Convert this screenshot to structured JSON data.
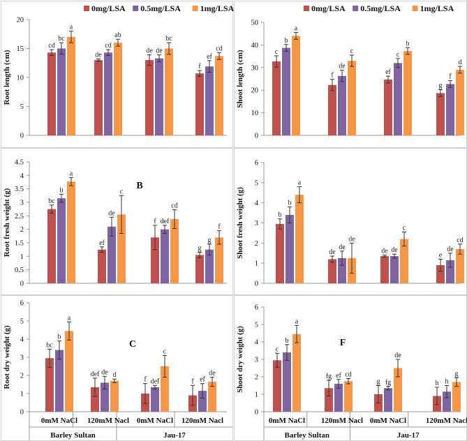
{
  "colors": {
    "s0": "#c0504d",
    "s1": "#8064a2",
    "s2": "#f79646"
  },
  "legend": [
    "0mg/LSA",
    "0.5mg/LSA",
    "1mg/LSA"
  ],
  "x_categories": [
    "0mM NaCl",
    "120mM Nacl",
    "0mM NaCl",
    "120mM Nacl"
  ],
  "x_groups": [
    "Barley Sultan",
    "Jau-17"
  ],
  "chart_data": [
    {
      "type": "bar",
      "panel": "A",
      "letter": "",
      "ylabel": "Root length (cm)",
      "ylim": [
        0,
        20
      ],
      "ticks": [
        "0",
        "5",
        "10",
        "15",
        "20"
      ],
      "categories": [
        "0mM NaCl",
        "120mM Nacl",
        "0mM NaCl",
        "120mM Nacl"
      ],
      "series": [
        {
          "name": "0mg/LSA",
          "values": [
            14.3,
            13.0,
            13.0,
            10.7
          ],
          "errors": [
            0.5,
            0.2,
            0.9,
            0.5
          ],
          "labels": [
            "cd",
            "de",
            "de",
            "f"
          ]
        },
        {
          "name": "0.5mg/LSA",
          "values": [
            15.0,
            14.3,
            13.3,
            11.9
          ],
          "errors": [
            1.0,
            0.5,
            0.6,
            1.0
          ],
          "labels": [
            "bc",
            "cd",
            "de",
            "ef"
          ]
        },
        {
          "name": "1mg/LSA",
          "values": [
            17.0,
            16.0,
            15.0,
            13.7
          ],
          "errors": [
            1.0,
            0.6,
            1.0,
            0.6
          ],
          "labels": [
            "a",
            "ab",
            "bc",
            "cd"
          ]
        }
      ]
    },
    {
      "type": "bar",
      "panel": "D",
      "letter": "",
      "ylabel": "Shoot length (cm)",
      "ylim": [
        0,
        50
      ],
      "ticks": [
        "0",
        "10",
        "20",
        "30",
        "40",
        "50"
      ],
      "categories": [
        "0mM NaCl",
        "120mM Nacl",
        "0mM NaCl",
        "120mM Nacl"
      ],
      "series": [
        {
          "name": "0mg/LSA",
          "values": [
            32.7,
            22.3,
            24.7,
            18.7
          ],
          "errors": [
            2.5,
            2.5,
            1.5,
            1.5
          ],
          "labels": [
            "c",
            "f",
            "ef",
            "g"
          ]
        },
        {
          "name": "0.5mg/LSA",
          "values": [
            38.7,
            26.3,
            32.0,
            22.7
          ],
          "errors": [
            1.5,
            2.5,
            2.0,
            1.5
          ],
          "labels": [
            "b",
            "de",
            "c",
            "f"
          ]
        },
        {
          "name": "1mg/LSA",
          "values": [
            44.0,
            33.0,
            37.3,
            29.0
          ],
          "errors": [
            1.5,
            2.5,
            1.5,
            1.5
          ],
          "labels": [
            "a",
            "c",
            "b",
            "d"
          ]
        }
      ]
    },
    {
      "type": "bar",
      "panel": "B",
      "letter": "B",
      "ylabel": "Root fresh weight (g)",
      "ylim": [
        0,
        4.5
      ],
      "ticks": [
        "0",
        "0.5",
        "1",
        "1.5",
        "2",
        "2.5",
        "3",
        "3.5",
        "4",
        "4.5"
      ],
      "categories": [
        "0mM NaCl",
        "120mM Nacl",
        "0mM NaCl",
        "120mM Nacl"
      ],
      "series": [
        {
          "name": "0mg/LSA",
          "values": [
            2.75,
            1.25,
            1.7,
            1.05
          ],
          "errors": [
            0.15,
            0.1,
            0.45,
            0.1
          ],
          "labels": [
            "bc",
            "ef",
            "f",
            "g"
          ]
        },
        {
          "name": "0.5mg/LSA",
          "values": [
            3.15,
            2.1,
            2.0,
            1.25
          ],
          "errors": [
            0.15,
            0.35,
            0.15,
            0.2
          ],
          "labels": [
            "b",
            "de",
            "def",
            "g"
          ]
        },
        {
          "name": "1mg/LSA",
          "values": [
            3.77,
            2.55,
            2.38,
            1.7
          ],
          "errors": [
            0.15,
            0.7,
            0.35,
            0.25
          ],
          "labels": [
            "a",
            "c",
            "cd",
            "f"
          ]
        }
      ]
    },
    {
      "type": "bar",
      "panel": "E",
      "letter": "",
      "ylabel": "Shoot fresh weight (g)",
      "ylim": [
        0,
        6
      ],
      "ticks": [
        "0",
        "1",
        "2",
        "3",
        "4",
        "5",
        "6"
      ],
      "categories": [
        "0mM NaCl",
        "120mM Nacl",
        "0mM NaCl",
        "120mM Nacl"
      ],
      "series": [
        {
          "name": "0mg/LSA",
          "values": [
            2.95,
            1.2,
            1.35,
            0.9
          ],
          "errors": [
            0.25,
            0.15,
            0.05,
            0.3
          ],
          "labels": [
            "b",
            "de",
            "de",
            "e"
          ]
        },
        {
          "name": "0.5mg/LSA",
          "values": [
            3.4,
            1.25,
            1.35,
            1.15
          ],
          "errors": [
            0.4,
            0.35,
            0.1,
            0.35
          ],
          "labels": [
            "b",
            "de",
            "de",
            "de"
          ]
        },
        {
          "name": "1mg/LSA",
          "values": [
            4.4,
            1.25,
            2.2,
            1.7
          ],
          "errors": [
            0.4,
            0.75,
            0.35,
            0.25
          ],
          "labels": [
            "a",
            "de",
            "c",
            "cd"
          ]
        }
      ]
    },
    {
      "type": "bar",
      "panel": "C",
      "letter": "C",
      "ylabel": "Root dry weight (g)",
      "ylim": [
        0,
        6
      ],
      "ticks": [
        "0",
        "1",
        "2",
        "3",
        "4",
        "5",
        "6"
      ],
      "categories": [
        "0mM NaCl",
        "120mM Nacl",
        "0mM NaCl",
        "120mM Nacl"
      ],
      "series": [
        {
          "name": "0mg/LSA",
          "values": [
            2.95,
            1.35,
            1.0,
            0.9
          ],
          "errors": [
            0.5,
            0.5,
            0.55,
            0.55
          ],
          "labels": [
            "bc",
            "def",
            "f",
            "f"
          ]
        },
        {
          "name": "0.5mg/LSA",
          "values": [
            3.4,
            1.6,
            1.35,
            1.15
          ],
          "errors": [
            0.5,
            0.35,
            0.1,
            0.4
          ],
          "labels": [
            "b",
            "de",
            "def",
            "ef"
          ]
        },
        {
          "name": "1mg/LSA",
          "values": [
            4.45,
            1.7,
            2.5,
            1.65
          ],
          "errors": [
            0.5,
            0.1,
            0.6,
            0.25
          ],
          "labels": [
            "a",
            "d",
            "c",
            "de"
          ]
        }
      ]
    },
    {
      "type": "bar",
      "panel": "F",
      "letter": "F",
      "ylabel": "Shoot dry weight (g)",
      "ylim": [
        0,
        6
      ],
      "ticks": [
        "0",
        "1",
        "2",
        "3",
        "4",
        "5",
        "6"
      ],
      "categories": [
        "0mM NaCl",
        "120mM Nacl",
        "0mM NaCl",
        "120mM Nacl"
      ],
      "series": [
        {
          "name": "0mg/LSA",
          "values": [
            2.95,
            1.35,
            1.0,
            0.9
          ],
          "errors": [
            0.4,
            0.45,
            0.5,
            0.5
          ],
          "labels": [
            "c",
            "fg",
            "g",
            "h"
          ]
        },
        {
          "name": "0.5mg/LSA",
          "values": [
            3.4,
            1.6,
            1.35,
            1.15
          ],
          "errors": [
            0.45,
            0.25,
            0.1,
            0.35
          ],
          "labels": [
            "b",
            "ef",
            "fg",
            "h"
          ]
        },
        {
          "name": "1mg/LSA",
          "values": [
            4.45,
            1.75,
            2.5,
            1.7
          ],
          "errors": [
            0.5,
            0.15,
            0.5,
            0.25
          ],
          "labels": [
            "a",
            "cd",
            "de",
            "g"
          ]
        }
      ]
    }
  ]
}
